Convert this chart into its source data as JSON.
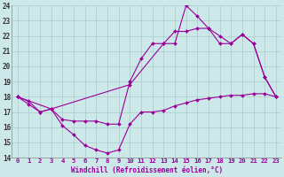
{
  "xlabel": "Windchill (Refroidissement éolien,°C)",
  "xlim": [
    -0.5,
    23.5
  ],
  "ylim": [
    14,
    24
  ],
  "xticks": [
    0,
    1,
    2,
    3,
    4,
    5,
    6,
    7,
    8,
    9,
    10,
    11,
    12,
    13,
    14,
    15,
    16,
    17,
    18,
    19,
    20,
    21,
    22,
    23
  ],
  "yticks": [
    14,
    15,
    16,
    17,
    18,
    19,
    20,
    21,
    22,
    23,
    24
  ],
  "bg_color": "#cce8e8",
  "grid_color": "#aacccc",
  "line_color": "#990099",
  "line1_x": [
    0,
    1,
    2,
    3,
    4,
    5,
    6,
    7,
    8,
    9,
    10,
    11,
    12,
    13,
    14,
    15,
    16,
    17,
    18,
    19,
    20,
    21,
    22,
    23
  ],
  "line1_y": [
    18.0,
    17.7,
    17.0,
    17.2,
    16.1,
    15.5,
    14.8,
    14.5,
    14.3,
    14.5,
    16.2,
    17.0,
    17.0,
    17.1,
    17.4,
    17.6,
    17.8,
    17.9,
    18.0,
    18.1,
    18.1,
    18.2,
    18.2,
    18.0
  ],
  "line2_x": [
    0,
    1,
    2,
    3,
    4,
    5,
    6,
    7,
    8,
    9,
    10,
    11,
    12,
    13,
    14,
    15,
    16,
    17,
    18,
    19,
    20,
    21,
    22,
    23
  ],
  "line2_y": [
    18.0,
    17.5,
    17.0,
    17.2,
    16.5,
    16.4,
    16.4,
    16.4,
    16.2,
    16.2,
    19.0,
    20.5,
    21.5,
    21.5,
    22.3,
    22.3,
    22.5,
    22.5,
    21.5,
    21.5,
    22.1,
    21.5,
    19.3,
    18.0
  ],
  "line3_x": [
    0,
    3,
    10,
    13,
    14,
    15,
    16,
    17,
    18,
    19,
    20,
    21,
    22,
    23
  ],
  "line3_y": [
    18.0,
    17.2,
    18.8,
    21.5,
    21.5,
    24.0,
    23.3,
    22.5,
    22.0,
    21.5,
    22.1,
    21.5,
    19.3,
    18.0
  ]
}
